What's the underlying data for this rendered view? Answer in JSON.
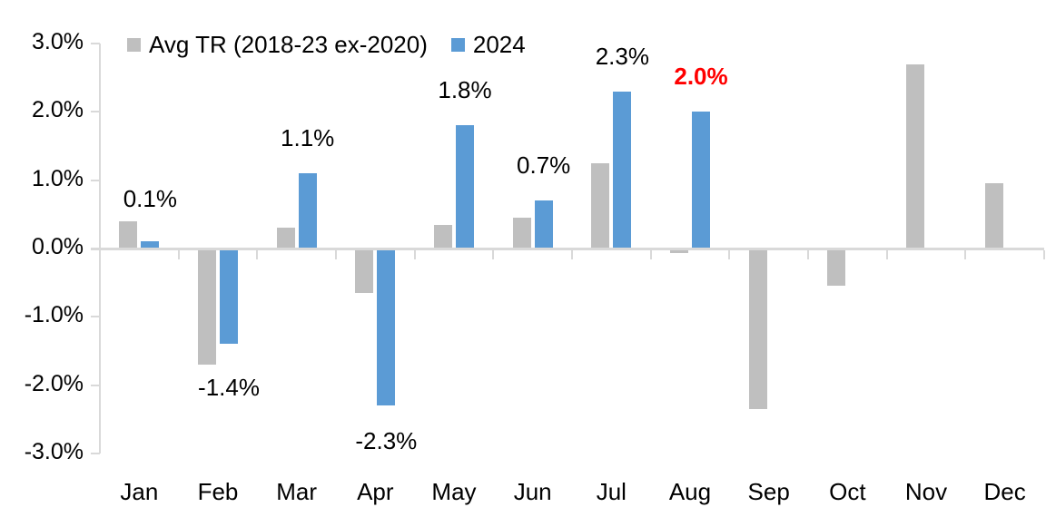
{
  "chart_data": {
    "type": "bar",
    "title": "",
    "categories": [
      "Jan",
      "Feb",
      "Mar",
      "Apr",
      "May",
      "Jun",
      "Jul",
      "Aug",
      "Sep",
      "Oct",
      "Nov",
      "Dec"
    ],
    "series": [
      {
        "name": "Avg TR (2018-23 ex-2020)",
        "color": "#bfbfbf",
        "values": [
          0.4,
          -1.7,
          0.3,
          -0.65,
          0.35,
          0.45,
          1.25,
          -0.07,
          -2.35,
          -0.55,
          2.7,
          0.95
        ]
      },
      {
        "name": "2024",
        "color": "#5b9bd5",
        "values": [
          0.1,
          -1.4,
          1.1,
          -2.3,
          1.8,
          0.7,
          2.3,
          2.0,
          null,
          null,
          null,
          null
        ],
        "labels": [
          "0.1%",
          "-1.4%",
          "1.1%",
          "-2.3%",
          "1.8%",
          "0.7%",
          "2.3%",
          "2.0%",
          "",
          "",
          "",
          ""
        ],
        "label_colors": [
          "#000000",
          "#000000",
          "#000000",
          "#000000",
          "#000000",
          "#000000",
          "#000000",
          "#ff0000",
          "",
          "",
          "",
          ""
        ]
      }
    ],
    "y_tick_labels": [
      "3.0%",
      "2.0%",
      "1.0%",
      "0.0%",
      "-1.0%",
      "-2.0%",
      "-3.0%"
    ],
    "ylim": [
      -3.0,
      3.0
    ],
    "xlabel": "",
    "ylabel": "",
    "grid": false,
    "legend_position": "top",
    "axis_color": "#d9d9d9",
    "highlight_color": "#ff0000"
  }
}
